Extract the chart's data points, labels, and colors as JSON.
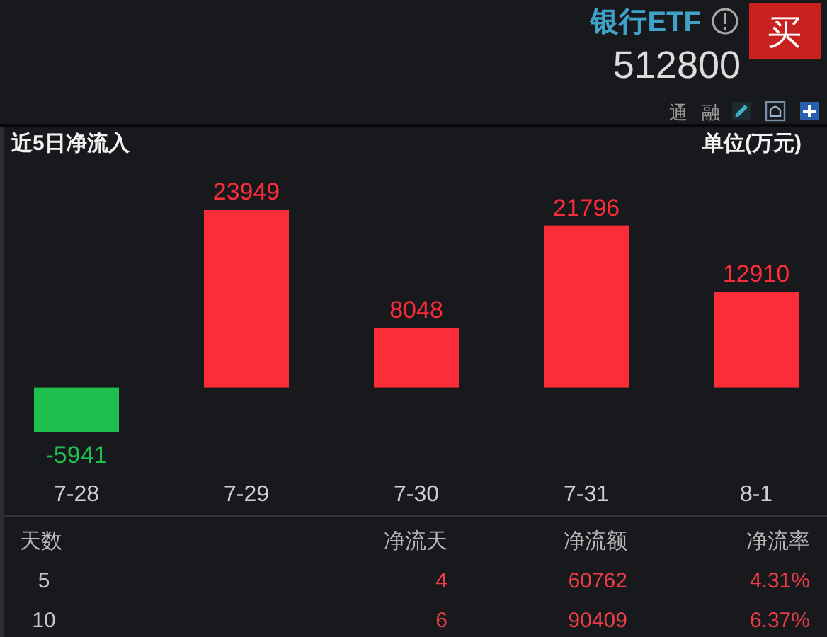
{
  "chart_data": {
    "type": "bar",
    "title": "近5日净流入",
    "ylabel": "单位(万元)",
    "categories": [
      "7-28",
      "7-29",
      "7-30",
      "7-31",
      "8-1"
    ],
    "values": [
      -5941,
      23949,
      8048,
      21796,
      12910
    ],
    "colors": [
      "#1fbf4f",
      "#fc2c38",
      "#fc2c38",
      "#fc2c38",
      "#fc2c38"
    ],
    "data_labels": true,
    "annotations": [
      "银行ETF",
      "512800",
      "买",
      "通",
      "融",
      "天数",
      "净流天",
      "净流额",
      "净流率",
      "5",
      "4",
      "60762",
      "4.31%",
      "10",
      "6",
      "90409",
      "6.37%"
    ]
  }
}
